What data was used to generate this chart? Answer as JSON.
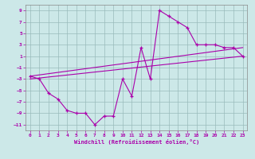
{
  "xlabel": "Windchill (Refroidissement éolien,°C)",
  "bg_color": "#cce8e8",
  "line_color": "#aa00aa",
  "grid_color": "#99bbbb",
  "xlim": [
    -0.5,
    23.5
  ],
  "ylim": [
    -12,
    10
  ],
  "xticks": [
    0,
    1,
    2,
    3,
    4,
    5,
    6,
    7,
    8,
    9,
    10,
    11,
    12,
    13,
    14,
    15,
    16,
    17,
    18,
    19,
    20,
    21,
    22,
    23
  ],
  "yticks": [
    -11,
    -9,
    -7,
    -5,
    -3,
    -1,
    1,
    3,
    5,
    7,
    9
  ],
  "series1_x": [
    0,
    1,
    2,
    3,
    4,
    5,
    6,
    7,
    8,
    9,
    10,
    11,
    12,
    13,
    14,
    15,
    16,
    17,
    18,
    19,
    20,
    21,
    22,
    23
  ],
  "series1_y": [
    -2.5,
    -3.0,
    -5.5,
    -6.5,
    -8.5,
    -9.0,
    -9.0,
    -11.0,
    -9.5,
    -9.5,
    -3.0,
    -6.0,
    2.5,
    -3.0,
    9.0,
    8.0,
    7.0,
    6.0,
    3.0,
    3.0,
    3.0,
    2.5,
    2.5,
    1.0
  ],
  "trend1_x": [
    0,
    23
  ],
  "trend1_y": [
    -3.0,
    1.0
  ],
  "trend2_x": [
    0,
    23
  ],
  "trend2_y": [
    -2.5,
    2.5
  ]
}
